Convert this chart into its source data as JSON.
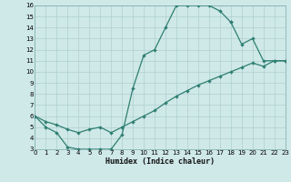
{
  "xlabel": "Humidex (Indice chaleur)",
  "xlim": [
    0,
    23
  ],
  "ylim": [
    3,
    16
  ],
  "xticks": [
    0,
    1,
    2,
    3,
    4,
    5,
    6,
    7,
    8,
    9,
    10,
    11,
    12,
    13,
    14,
    15,
    16,
    17,
    18,
    19,
    20,
    21,
    22,
    23
  ],
  "yticks": [
    3,
    4,
    5,
    6,
    7,
    8,
    9,
    10,
    11,
    12,
    13,
    14,
    15,
    16
  ],
  "bg_color": "#cfe8e8",
  "line_color": "#2e7f72",
  "grid_color": "#afd0d0",
  "curves": [
    {
      "x": [
        0,
        1,
        2,
        3,
        4,
        5,
        6,
        7,
        8,
        9,
        10,
        11,
        12,
        13,
        14,
        15,
        16,
        17,
        18
      ],
      "y": [
        6,
        5,
        4.5,
        3.2,
        3.0,
        3.0,
        3.0,
        3.0,
        4.3,
        8.5,
        11.5,
        12,
        14,
        16,
        16,
        16,
        16,
        15.5,
        14.5
      ]
    },
    {
      "x": [
        0,
        1,
        2,
        3,
        4,
        5,
        6,
        7,
        8,
        9,
        10,
        11,
        12,
        13,
        14,
        15,
        16,
        17,
        18,
        19,
        20,
        21,
        22,
        23
      ],
      "y": [
        6,
        5.5,
        5.2,
        4.8,
        4.5,
        4.8,
        5.0,
        4.5,
        5.0,
        5.5,
        6.0,
        6.5,
        7.2,
        7.8,
        8.3,
        8.8,
        9.2,
        9.6,
        10.0,
        10.4,
        10.8,
        10.5,
        11.0,
        11.0
      ]
    },
    {
      "comment": "right segment: from (18,14.5) down through (19,12.5),(20,13),(21,11),(22,11),(23,11)",
      "x": [
        18,
        19,
        20,
        21,
        22,
        23
      ],
      "y": [
        14.5,
        12.5,
        13.0,
        11.0,
        11.0,
        11.0
      ]
    }
  ]
}
